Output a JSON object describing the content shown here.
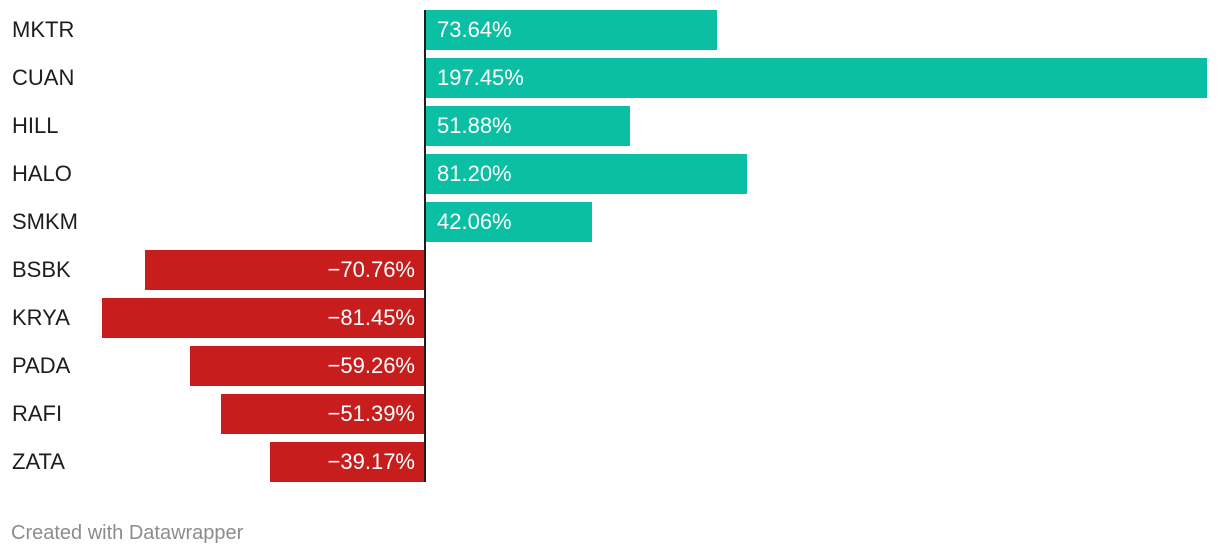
{
  "chart_data": {
    "type": "bar",
    "orientation": "horizontal",
    "categories": [
      "MKTR",
      "CUAN",
      "HILL",
      "HALO",
      "SMKM",
      "BSBK",
      "KRYA",
      "PADA",
      "RAFI",
      "ZATA"
    ],
    "values": [
      73.64,
      197.45,
      51.88,
      81.2,
      42.06,
      -70.76,
      -81.45,
      -59.26,
      -51.39,
      -39.17
    ],
    "value_labels": [
      "73.64%",
      "197.45%",
      "51.88%",
      "81.20%",
      "42.06%",
      "−70.76%",
      "−81.45%",
      "−59.26%",
      "−51.39%",
      "−39.17%"
    ],
    "positive_color": "#0ABFA3",
    "negative_color": "#C71E1D",
    "grid": false,
    "legend": "none"
  },
  "footer": {
    "credit": "Created with Datawrapper"
  }
}
